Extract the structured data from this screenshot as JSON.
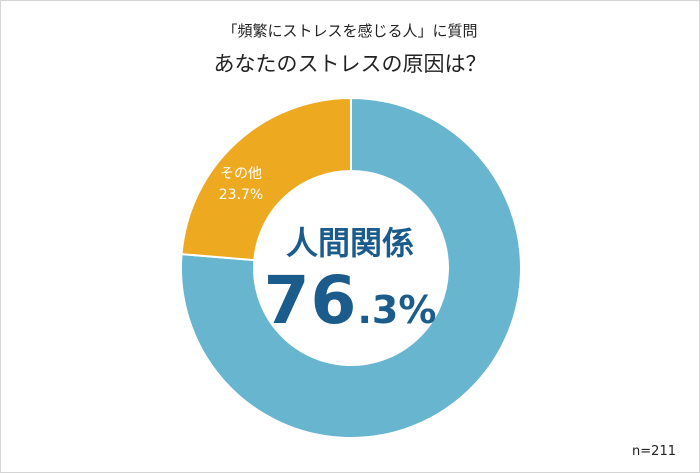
{
  "title": "「頻繁にストレスを感じる人」に質問",
  "subtitle": "あなたのストレスの原因は？",
  "sample_size": "n=211",
  "colors": {
    "primary": "#67b5ce",
    "secondary": "#eda920",
    "center_text": "#1b5c8c"
  },
  "center": {
    "label": "人間関係",
    "value_int": "76",
    "value_dec": ".3%"
  },
  "slice_label": {
    "name": "その他",
    "value": "23.7%"
  },
  "chart_data": {
    "type": "pie",
    "donut": true,
    "title": "「頻繁にストレスを感じる人」に質問",
    "subtitle": "あなたのストレスの原因は？",
    "categories": [
      "人間関係",
      "その他"
    ],
    "values": [
      76.3,
      23.7
    ],
    "unit": "%",
    "sample_size": "n=211"
  }
}
